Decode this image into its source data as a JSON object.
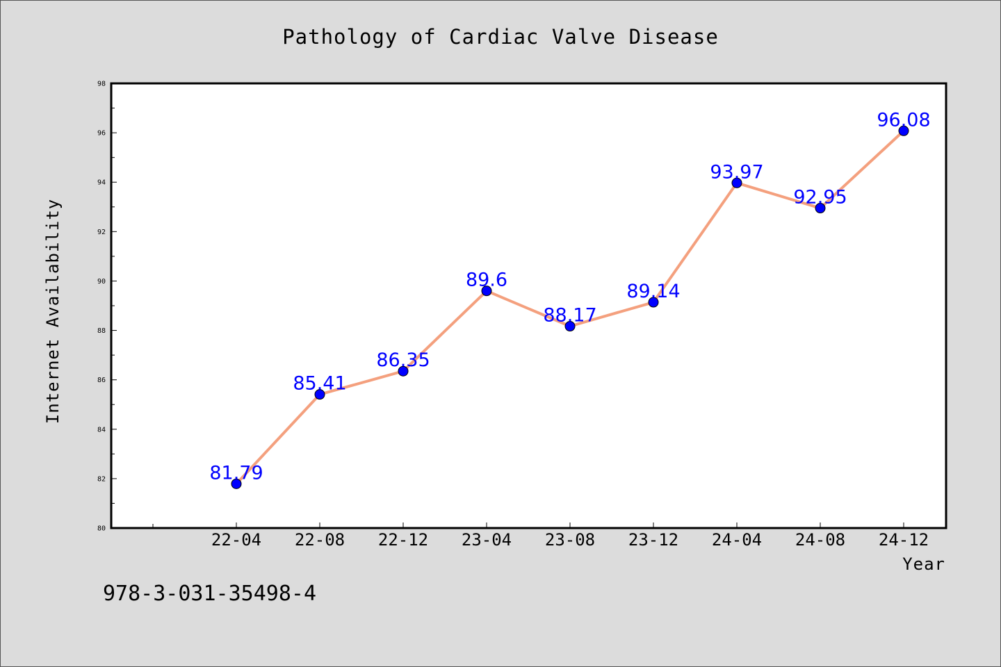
{
  "chart_data": {
    "type": "line",
    "title": "Pathology of Cardiac Valve Disease",
    "xlabel": "Year",
    "ylabel": "Internet Availability",
    "categories": [
      "22-04",
      "22-08",
      "22-12",
      "23-04",
      "23-08",
      "23-12",
      "24-04",
      "24-08",
      "24-12"
    ],
    "values": [
      81.79,
      85.41,
      86.35,
      89.6,
      88.17,
      89.14,
      93.97,
      92.95,
      96.08
    ],
    "data_labels": [
      "81.79",
      "85.41",
      "86.35",
      "89.6",
      "88.17",
      "89.14",
      "93.97",
      "92.95",
      "96.08"
    ],
    "ylim": [
      80,
      98
    ],
    "yticks": [
      80,
      82,
      84,
      86,
      88,
      90,
      92,
      94,
      96,
      98
    ],
    "grid": false,
    "line_color": "#f4a07e",
    "marker_color": "#0000ff"
  },
  "footer": {
    "code": "978-3-031-35498-4"
  },
  "colors": {
    "background": "#dcdcdc",
    "plot_area": "#ffffff"
  }
}
